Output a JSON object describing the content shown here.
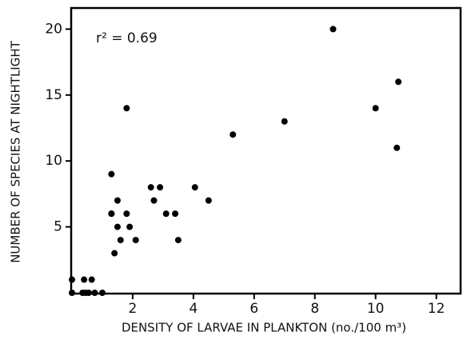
{
  "chart_data": {
    "type": "scatter",
    "xlabel": "DENSITY OF LARVAE IN PLANKTON (no./100 m³)",
    "ylabel": "NUMBER OF SPECIES AT NIGHTLIGHT",
    "annotation": "r² = 0.69",
    "color": "#000000",
    "x": [
      0,
      0,
      0.35,
      0.45,
      0.55,
      0.4,
      0.65,
      0.75,
      1.0,
      1.3,
      1.3,
      1.3,
      1.4,
      1.5,
      1.5,
      1.6,
      1.8,
      1.8,
      1.9,
      2.1,
      2.6,
      2.7,
      2.9,
      3.1,
      3.4,
      3.5,
      4.05,
      4.5,
      5.3,
      7.0,
      8.6,
      10.0,
      10.75,
      10.7
    ],
    "values": [
      1,
      0,
      0,
      0,
      0,
      1,
      1,
      0,
      0,
      6,
      9,
      6,
      3,
      5,
      7,
      4,
      14,
      6,
      5,
      4,
      8,
      7,
      8,
      6,
      6,
      4,
      8,
      7,
      12,
      13,
      20,
      14,
      16,
      11
    ],
    "xlim": [
      0,
      12.8
    ],
    "ylim": [
      0,
      21.6
    ],
    "xticks": [
      2,
      4,
      6,
      8,
      10,
      12
    ],
    "yticks": [
      5,
      10,
      15,
      20
    ]
  }
}
